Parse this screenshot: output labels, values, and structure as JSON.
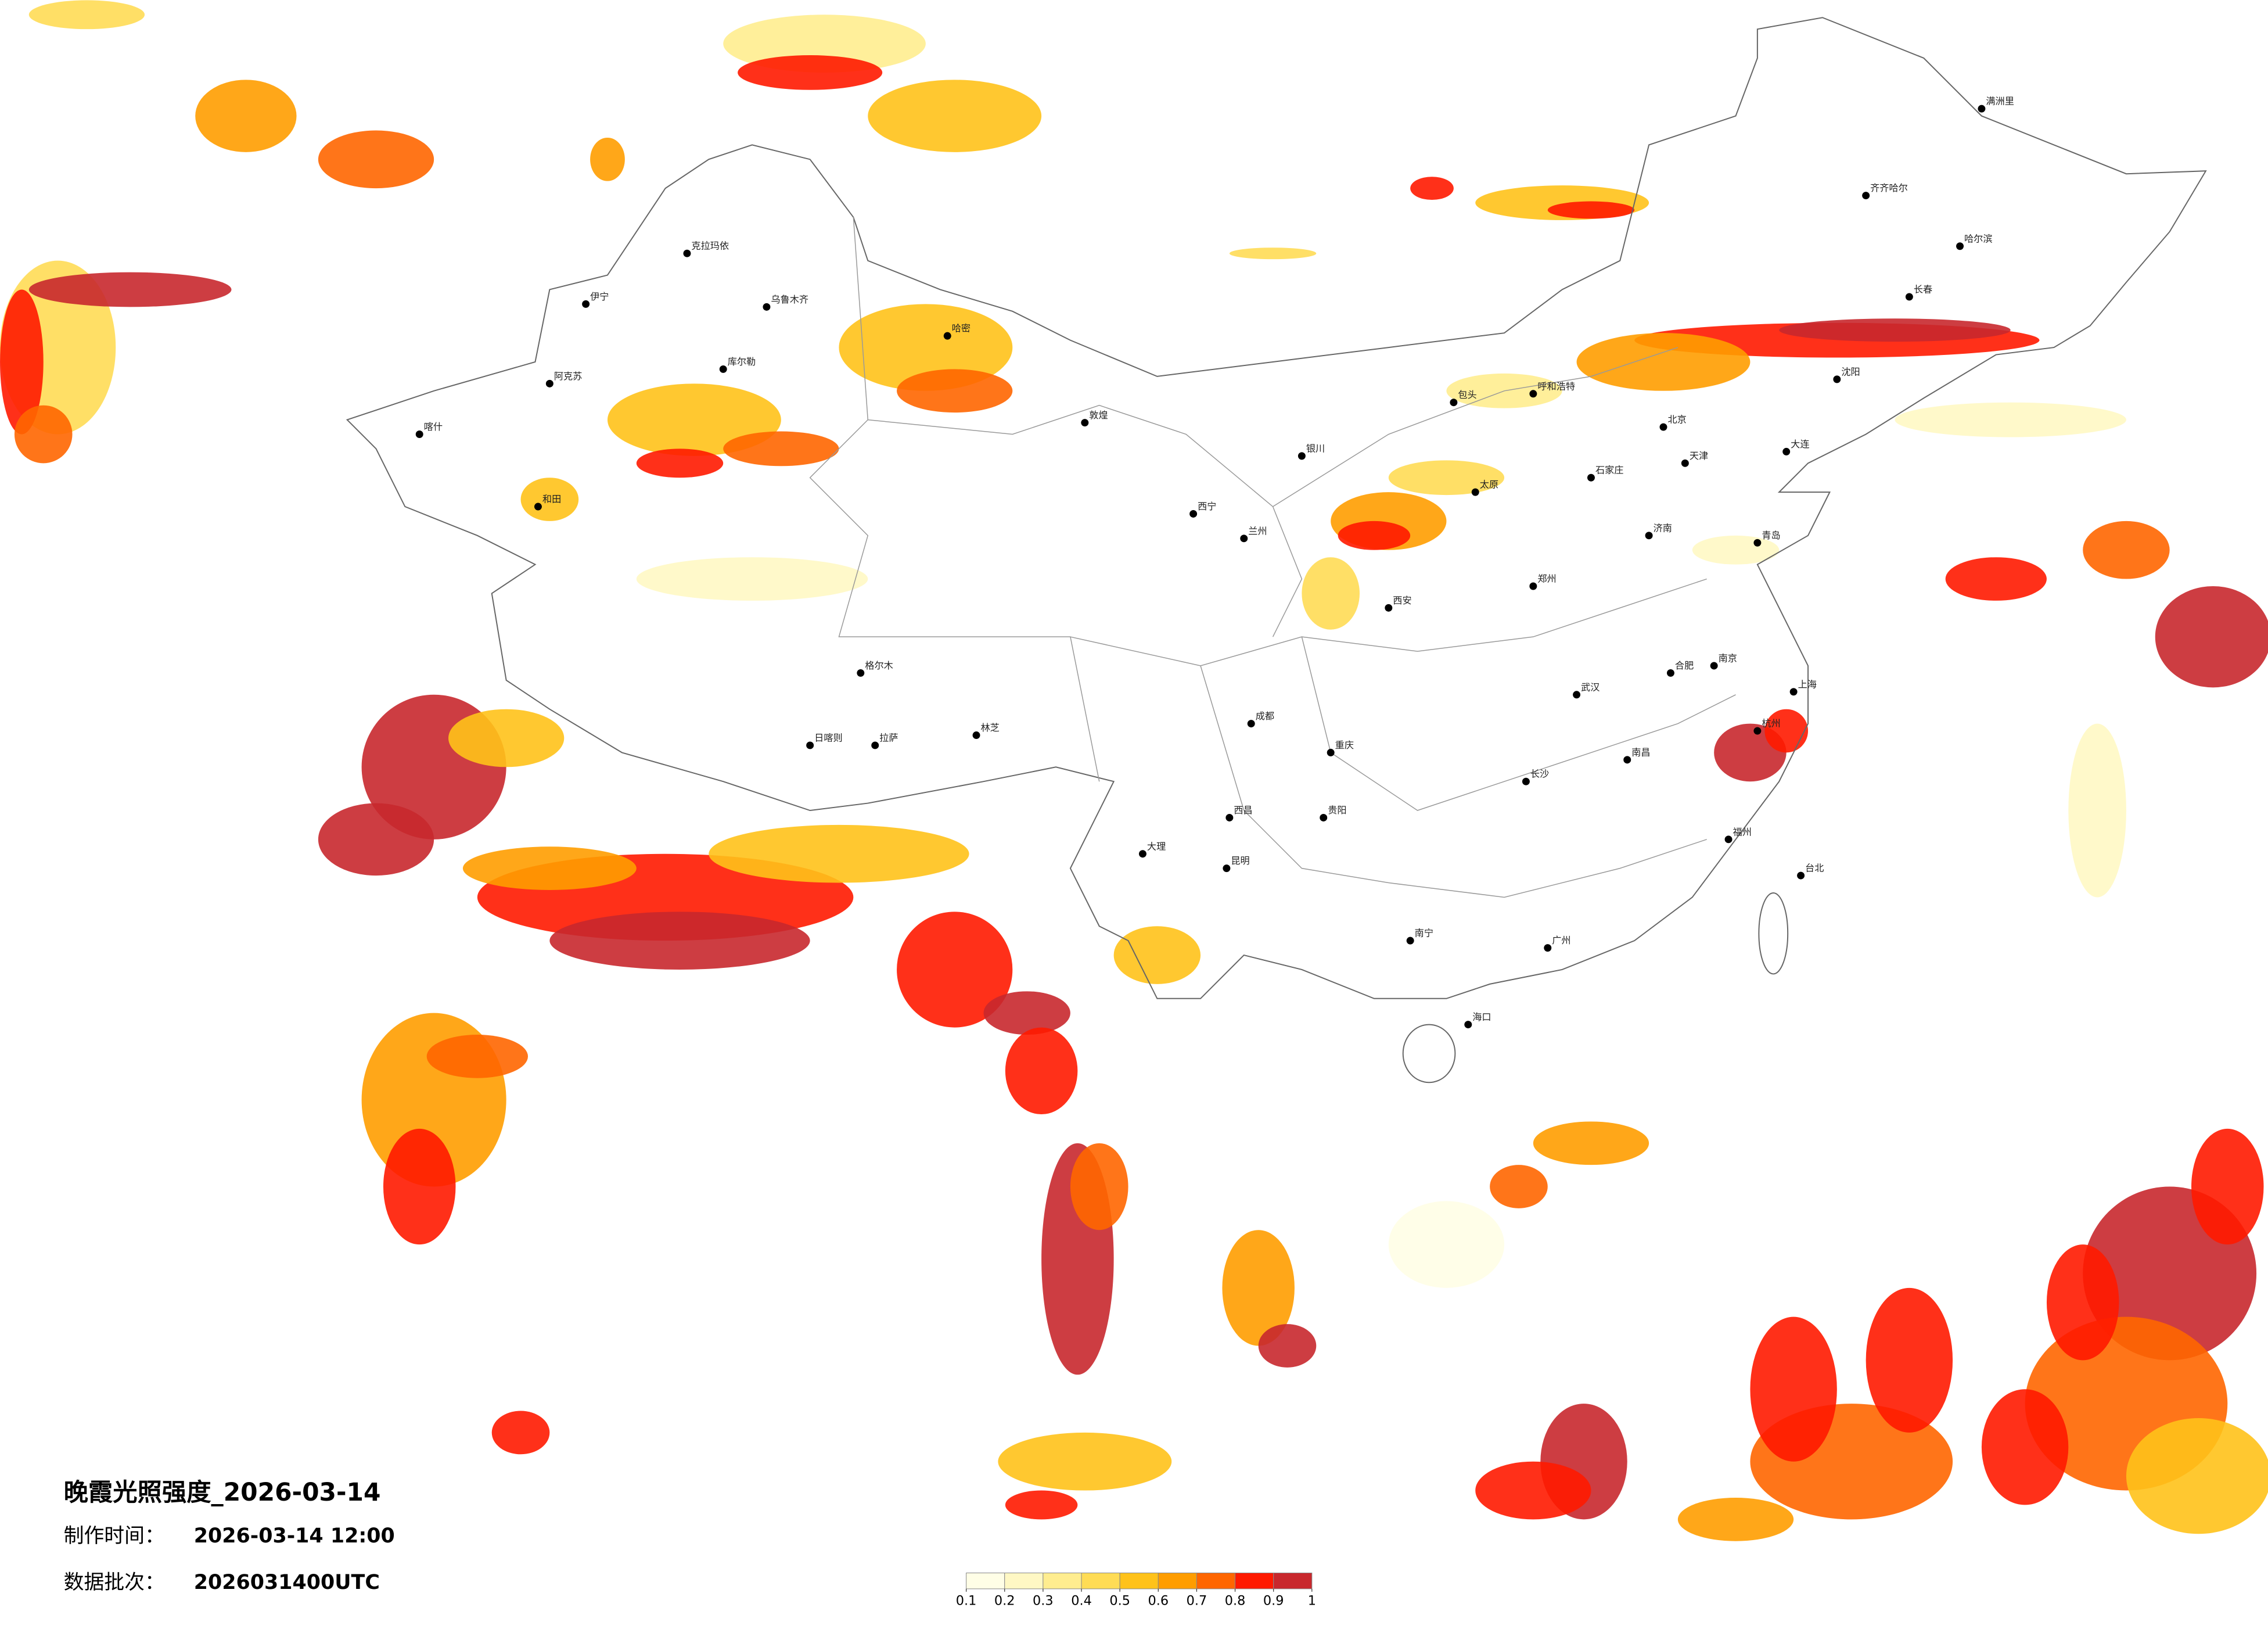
{
  "header": {
    "title": "晚霞光照强度_2026-03-14",
    "made_label": "制作时间：",
    "made_time": "2026-03-14 12:00",
    "batch_label": "数据批次：",
    "batch": "2026031400UTC"
  },
  "legend": {
    "ticks": [
      0.1,
      0.2,
      0.3,
      0.4,
      0.5,
      0.6,
      0.7,
      0.8,
      0.9,
      1
    ],
    "colors": [
      "#fffee6",
      "#fff8c4",
      "#ffed8f",
      "#ffdc55",
      "#ffc21a",
      "#ff9d00",
      "#ff6600",
      "#ff1a00",
      "#c8282d"
    ]
  },
  "cities": [
    "乌鲁木齐",
    "克拉玛依",
    "伊宁",
    "阿克苏",
    "喀什",
    "和田",
    "库尔勒",
    "哈密",
    "敦煌",
    "格尔木",
    "西宁",
    "兰州",
    "银川",
    "呼和浩特",
    "包头",
    "北京",
    "天津",
    "石家庄",
    "太原",
    "济南",
    "青岛",
    "郑州",
    "西安",
    "武汉",
    "长沙",
    "南昌",
    "合肥",
    "南京",
    "上海",
    "杭州",
    "福州",
    "广州",
    "南宁",
    "贵阳",
    "昆明",
    "成都",
    "重庆",
    "拉萨",
    "日喀则",
    "林芝",
    "哈尔滨",
    "长春",
    "沈阳",
    "大连",
    "海口",
    "台北",
    "齐齐哈尔",
    "满洲里",
    "大理",
    "西昌"
  ]
}
